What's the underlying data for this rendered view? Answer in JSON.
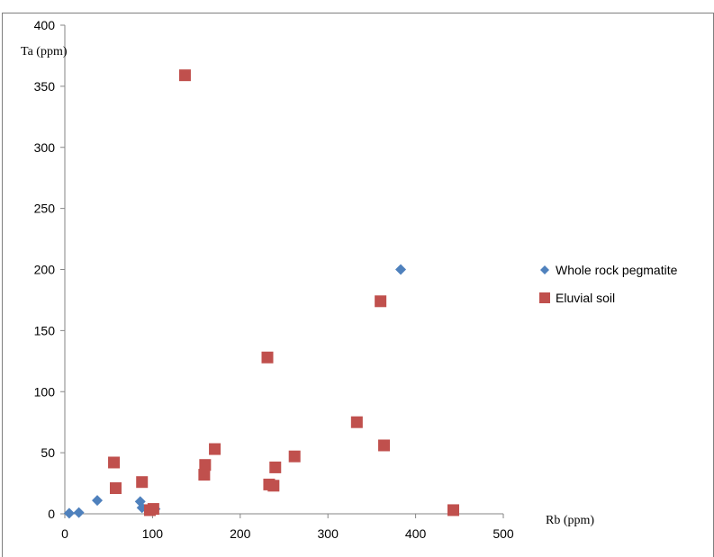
{
  "chart_data": {
    "type": "scatter",
    "xlabel": "Rb (ppm)",
    "ylabel": "Ta (ppm)",
    "xlim": [
      0,
      500
    ],
    "ylim": [
      0,
      400
    ],
    "x_ticks": [
      "0",
      "100",
      "200",
      "300",
      "400",
      "500"
    ],
    "y_ticks": [
      "0",
      "50",
      "100",
      "150",
      "200",
      "250",
      "300",
      "350",
      "400"
    ],
    "grid": false,
    "legend_position": "right",
    "series": [
      {
        "name": "Whole rock pegmatite",
        "marker": "diamond",
        "color": "#4f81bd",
        "points": [
          {
            "x": 5,
            "y": 0.5
          },
          {
            "x": 16,
            "y": 1
          },
          {
            "x": 37,
            "y": 11
          },
          {
            "x": 86,
            "y": 10
          },
          {
            "x": 88,
            "y": 5
          },
          {
            "x": 97,
            "y": 4
          },
          {
            "x": 103,
            "y": 4
          },
          {
            "x": 383,
            "y": 200
          }
        ]
      },
      {
        "name": "Eluvial soil",
        "marker": "square",
        "color": "#c0504d",
        "points": [
          {
            "x": 137,
            "y": 359
          },
          {
            "x": 56,
            "y": 42
          },
          {
            "x": 58,
            "y": 21
          },
          {
            "x": 88,
            "y": 26
          },
          {
            "x": 97,
            "y": 3
          },
          {
            "x": 101,
            "y": 4
          },
          {
            "x": 160,
            "y": 40
          },
          {
            "x": 159,
            "y": 32
          },
          {
            "x": 171,
            "y": 53
          },
          {
            "x": 231,
            "y": 128
          },
          {
            "x": 233,
            "y": 24
          },
          {
            "x": 238,
            "y": 23
          },
          {
            "x": 240,
            "y": 38
          },
          {
            "x": 262,
            "y": 47
          },
          {
            "x": 333,
            "y": 75
          },
          {
            "x": 360,
            "y": 174
          },
          {
            "x": 364,
            "y": 56
          },
          {
            "x": 443,
            "y": 3
          }
        ]
      }
    ]
  }
}
